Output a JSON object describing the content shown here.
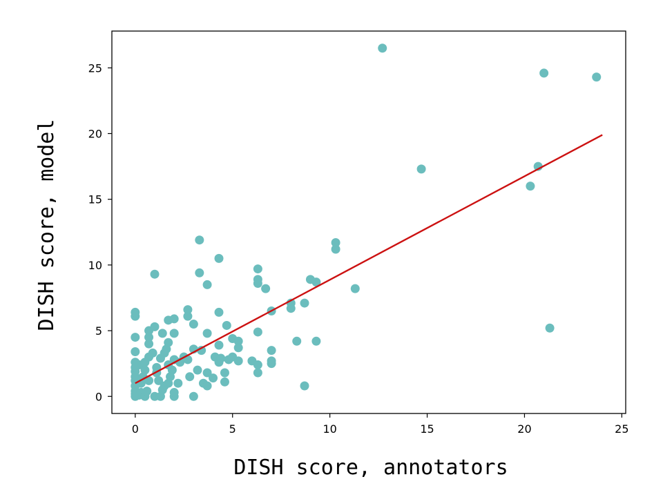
{
  "chart_data": {
    "type": "scatter",
    "title": "",
    "xlabel": "DISH score, annotators",
    "ylabel": "DISH score, model",
    "xlim": [
      -1.2,
      25.2
    ],
    "ylim": [
      -1.3,
      27.8
    ],
    "xticks": [
      0,
      5,
      10,
      15,
      20,
      25
    ],
    "yticks": [
      0,
      5,
      10,
      15,
      20,
      25
    ],
    "grid": false,
    "legend": "none",
    "colors": {
      "points": "#6bbdbd",
      "fit_line": "#cc1111",
      "axes": "#000000"
    },
    "series": [
      {
        "values": [
          [
            0,
            0
          ],
          [
            0,
            0.2
          ],
          [
            0,
            0.4
          ],
          [
            0.2,
            0.1
          ],
          [
            0.3,
            0.3
          ],
          [
            0.5,
            0
          ],
          [
            0.6,
            0.4
          ],
          [
            1.0,
            0
          ],
          [
            1.3,
            0
          ],
          [
            1.4,
            0.5
          ],
          [
            2.0,
            0
          ],
          [
            2.0,
            0.3
          ],
          [
            0,
            0.8
          ],
          [
            0,
            1.2
          ],
          [
            0,
            1.5
          ],
          [
            0,
            1.9
          ],
          [
            0.3,
            1.0
          ],
          [
            0.4,
            1.5
          ],
          [
            0.5,
            2.0
          ],
          [
            0.7,
            1.2
          ],
          [
            1.1,
            1.8
          ],
          [
            1.2,
            1.2
          ],
          [
            1.5,
            0.8
          ],
          [
            1.7,
            1.0
          ],
          [
            1.8,
            1.5
          ],
          [
            2.2,
            1.0
          ],
          [
            0,
            2.2
          ],
          [
            0,
            2.6
          ],
          [
            0.2,
            2.4
          ],
          [
            0.5,
            2.6
          ],
          [
            0.7,
            3.0
          ],
          [
            0.9,
            3.3
          ],
          [
            1.1,
            2.2
          ],
          [
            1.3,
            2.9
          ],
          [
            1.5,
            3.3
          ],
          [
            1.6,
            3.6
          ],
          [
            1.7,
            2.4
          ],
          [
            1.9,
            2.0
          ],
          [
            2.0,
            2.8
          ],
          [
            2.3,
            2.6
          ],
          [
            2.5,
            3.0
          ],
          [
            2.7,
            2.8
          ],
          [
            2.8,
            1.5
          ],
          [
            3.0,
            0
          ],
          [
            3.0,
            3.6
          ],
          [
            3.2,
            2.0
          ],
          [
            3.4,
            3.5
          ],
          [
            3.5,
            1.0
          ],
          [
            3.7,
            1.8
          ],
          [
            3.7,
            0.8
          ],
          [
            4.0,
            1.4
          ],
          [
            4.1,
            3.0
          ],
          [
            4.3,
            2.6
          ],
          [
            4.4,
            2.9
          ],
          [
            4.6,
            1.8
          ],
          [
            4.6,
            1.1
          ],
          [
            4.8,
            2.8
          ],
          [
            5.0,
            3.0
          ],
          [
            5.3,
            2.7
          ],
          [
            0,
            3.4
          ],
          [
            0,
            4.5
          ],
          [
            0,
            6.1
          ],
          [
            0,
            6.4
          ],
          [
            0.7,
            4.0
          ],
          [
            0.7,
            4.5
          ],
          [
            0.7,
            5.0
          ],
          [
            1.0,
            5.3
          ],
          [
            1.0,
            9.3
          ],
          [
            1.4,
            4.8
          ],
          [
            1.7,
            4.1
          ],
          [
            1.7,
            5.8
          ],
          [
            2.0,
            4.8
          ],
          [
            2.0,
            5.9
          ],
          [
            2.7,
            6.1
          ],
          [
            2.7,
            6.6
          ],
          [
            3.0,
            5.5
          ],
          [
            3.7,
            4.8
          ],
          [
            3.3,
            11.9
          ],
          [
            3.3,
            9.4
          ],
          [
            3.7,
            8.5
          ],
          [
            4.3,
            3.9
          ],
          [
            4.3,
            6.4
          ],
          [
            4.3,
            10.5
          ],
          [
            4.7,
            5.4
          ],
          [
            5.0,
            4.4
          ],
          [
            5.3,
            4.2
          ],
          [
            5.3,
            3.7
          ],
          [
            6.0,
            2.7
          ],
          [
            6.3,
            1.8
          ],
          [
            6.3,
            2.4
          ],
          [
            6.3,
            4.9
          ],
          [
            6.3,
            8.6
          ],
          [
            6.3,
            8.9
          ],
          [
            6.3,
            9.7
          ],
          [
            6.7,
            8.2
          ],
          [
            7.0,
            6.5
          ],
          [
            7.0,
            3.5
          ],
          [
            7.0,
            2.5
          ],
          [
            7.0,
            2.7
          ],
          [
            8.0,
            6.7
          ],
          [
            8.0,
            7.1
          ],
          [
            8.3,
            4.2
          ],
          [
            8.7,
            7.1
          ],
          [
            8.7,
            0.8
          ],
          [
            9.0,
            8.9
          ],
          [
            9.3,
            8.7
          ],
          [
            9.3,
            4.2
          ],
          [
            10.3,
            11.2
          ],
          [
            10.3,
            11.7
          ],
          [
            11.3,
            8.2
          ],
          [
            12.7,
            26.5
          ],
          [
            14.7,
            17.3
          ],
          [
            20.3,
            16.0
          ],
          [
            20.7,
            17.5
          ],
          [
            21.0,
            24.6
          ],
          [
            21.3,
            5.2
          ],
          [
            23.7,
            24.3
          ]
        ]
      }
    ],
    "fit_line": {
      "x": [
        0,
        24
      ],
      "y": [
        1.0,
        19.9
      ]
    }
  }
}
